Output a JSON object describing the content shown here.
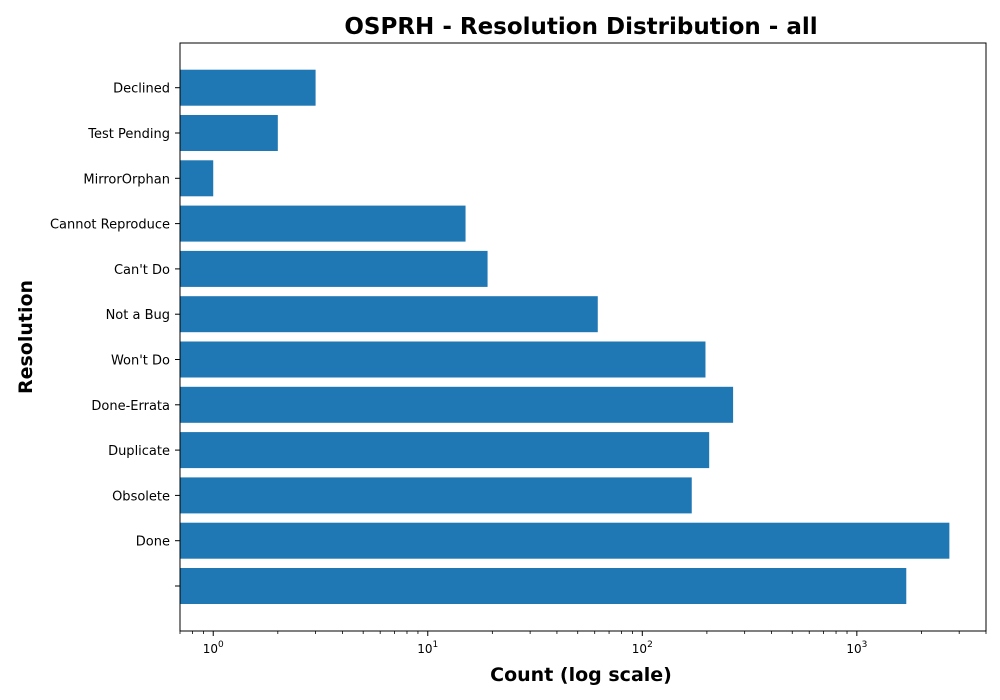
{
  "chart_data": {
    "type": "bar",
    "orientation": "horizontal",
    "title": "OSPRH - Resolution Distribution - all",
    "xlabel": "Count (log scale)",
    "ylabel": "Resolution",
    "x_scale": "log",
    "xlim": [
      0.7,
      4000
    ],
    "x_ticks": [
      {
        "base": "10",
        "exp": "0",
        "value": 1
      },
      {
        "base": "10",
        "exp": "1",
        "value": 10
      },
      {
        "base": "10",
        "exp": "2",
        "value": 100
      },
      {
        "base": "10",
        "exp": "3",
        "value": 1000
      }
    ],
    "categories": [
      "",
      "Done",
      "Obsolete",
      "Duplicate",
      "Done-Errata",
      "Won't Do",
      "Not a Bug",
      "Can't Do",
      "Cannot Reproduce",
      "MirrorOrphan",
      "Test Pending",
      "Declined"
    ],
    "values": [
      1700,
      2700,
      170,
      205,
      265,
      197,
      62,
      19,
      15,
      1,
      2,
      3
    ],
    "bar_color": "#1f77b4",
    "grid": false,
    "legend": "none"
  }
}
